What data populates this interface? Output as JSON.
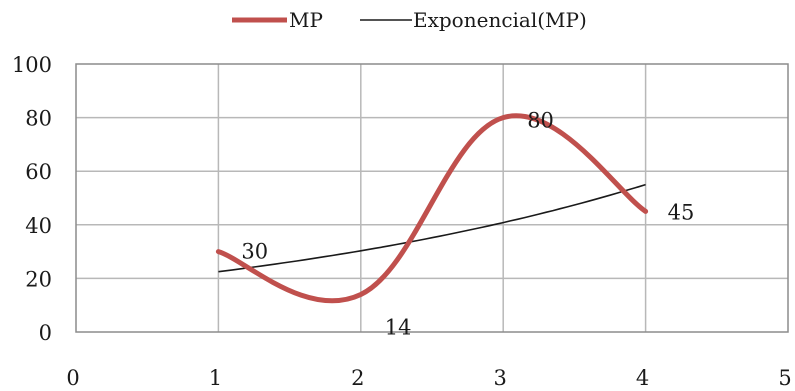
{
  "chart_data": {
    "type": "line",
    "title": "",
    "xlabel": "",
    "ylabel": "",
    "xlim": [
      0,
      5
    ],
    "ylim": [
      0,
      100
    ],
    "x_ticks": [
      0,
      1,
      2,
      3,
      4,
      5
    ],
    "y_ticks": [
      0,
      20,
      40,
      60,
      80,
      100
    ],
    "grid": true,
    "legend_position": "top",
    "smooth": true,
    "series": [
      {
        "name": "MP",
        "x": [
          1,
          2,
          3,
          4
        ],
        "values": [
          30,
          14,
          80,
          45
        ],
        "data_labels": [
          "30",
          "14",
          "80",
          "45"
        ],
        "color": "#c0504d",
        "style": "thick-smooth"
      },
      {
        "name": "Exponencial(MP)",
        "type": "exponential-trendline",
        "x": [
          1,
          2,
          3,
          4
        ],
        "values": [
          22.5,
          30.3,
          40.8,
          55
        ],
        "color": "#1a1a1a",
        "style": "thin"
      }
    ],
    "colors": {
      "grid": "#b8b8b8",
      "frame": "#8c8c8c"
    }
  }
}
